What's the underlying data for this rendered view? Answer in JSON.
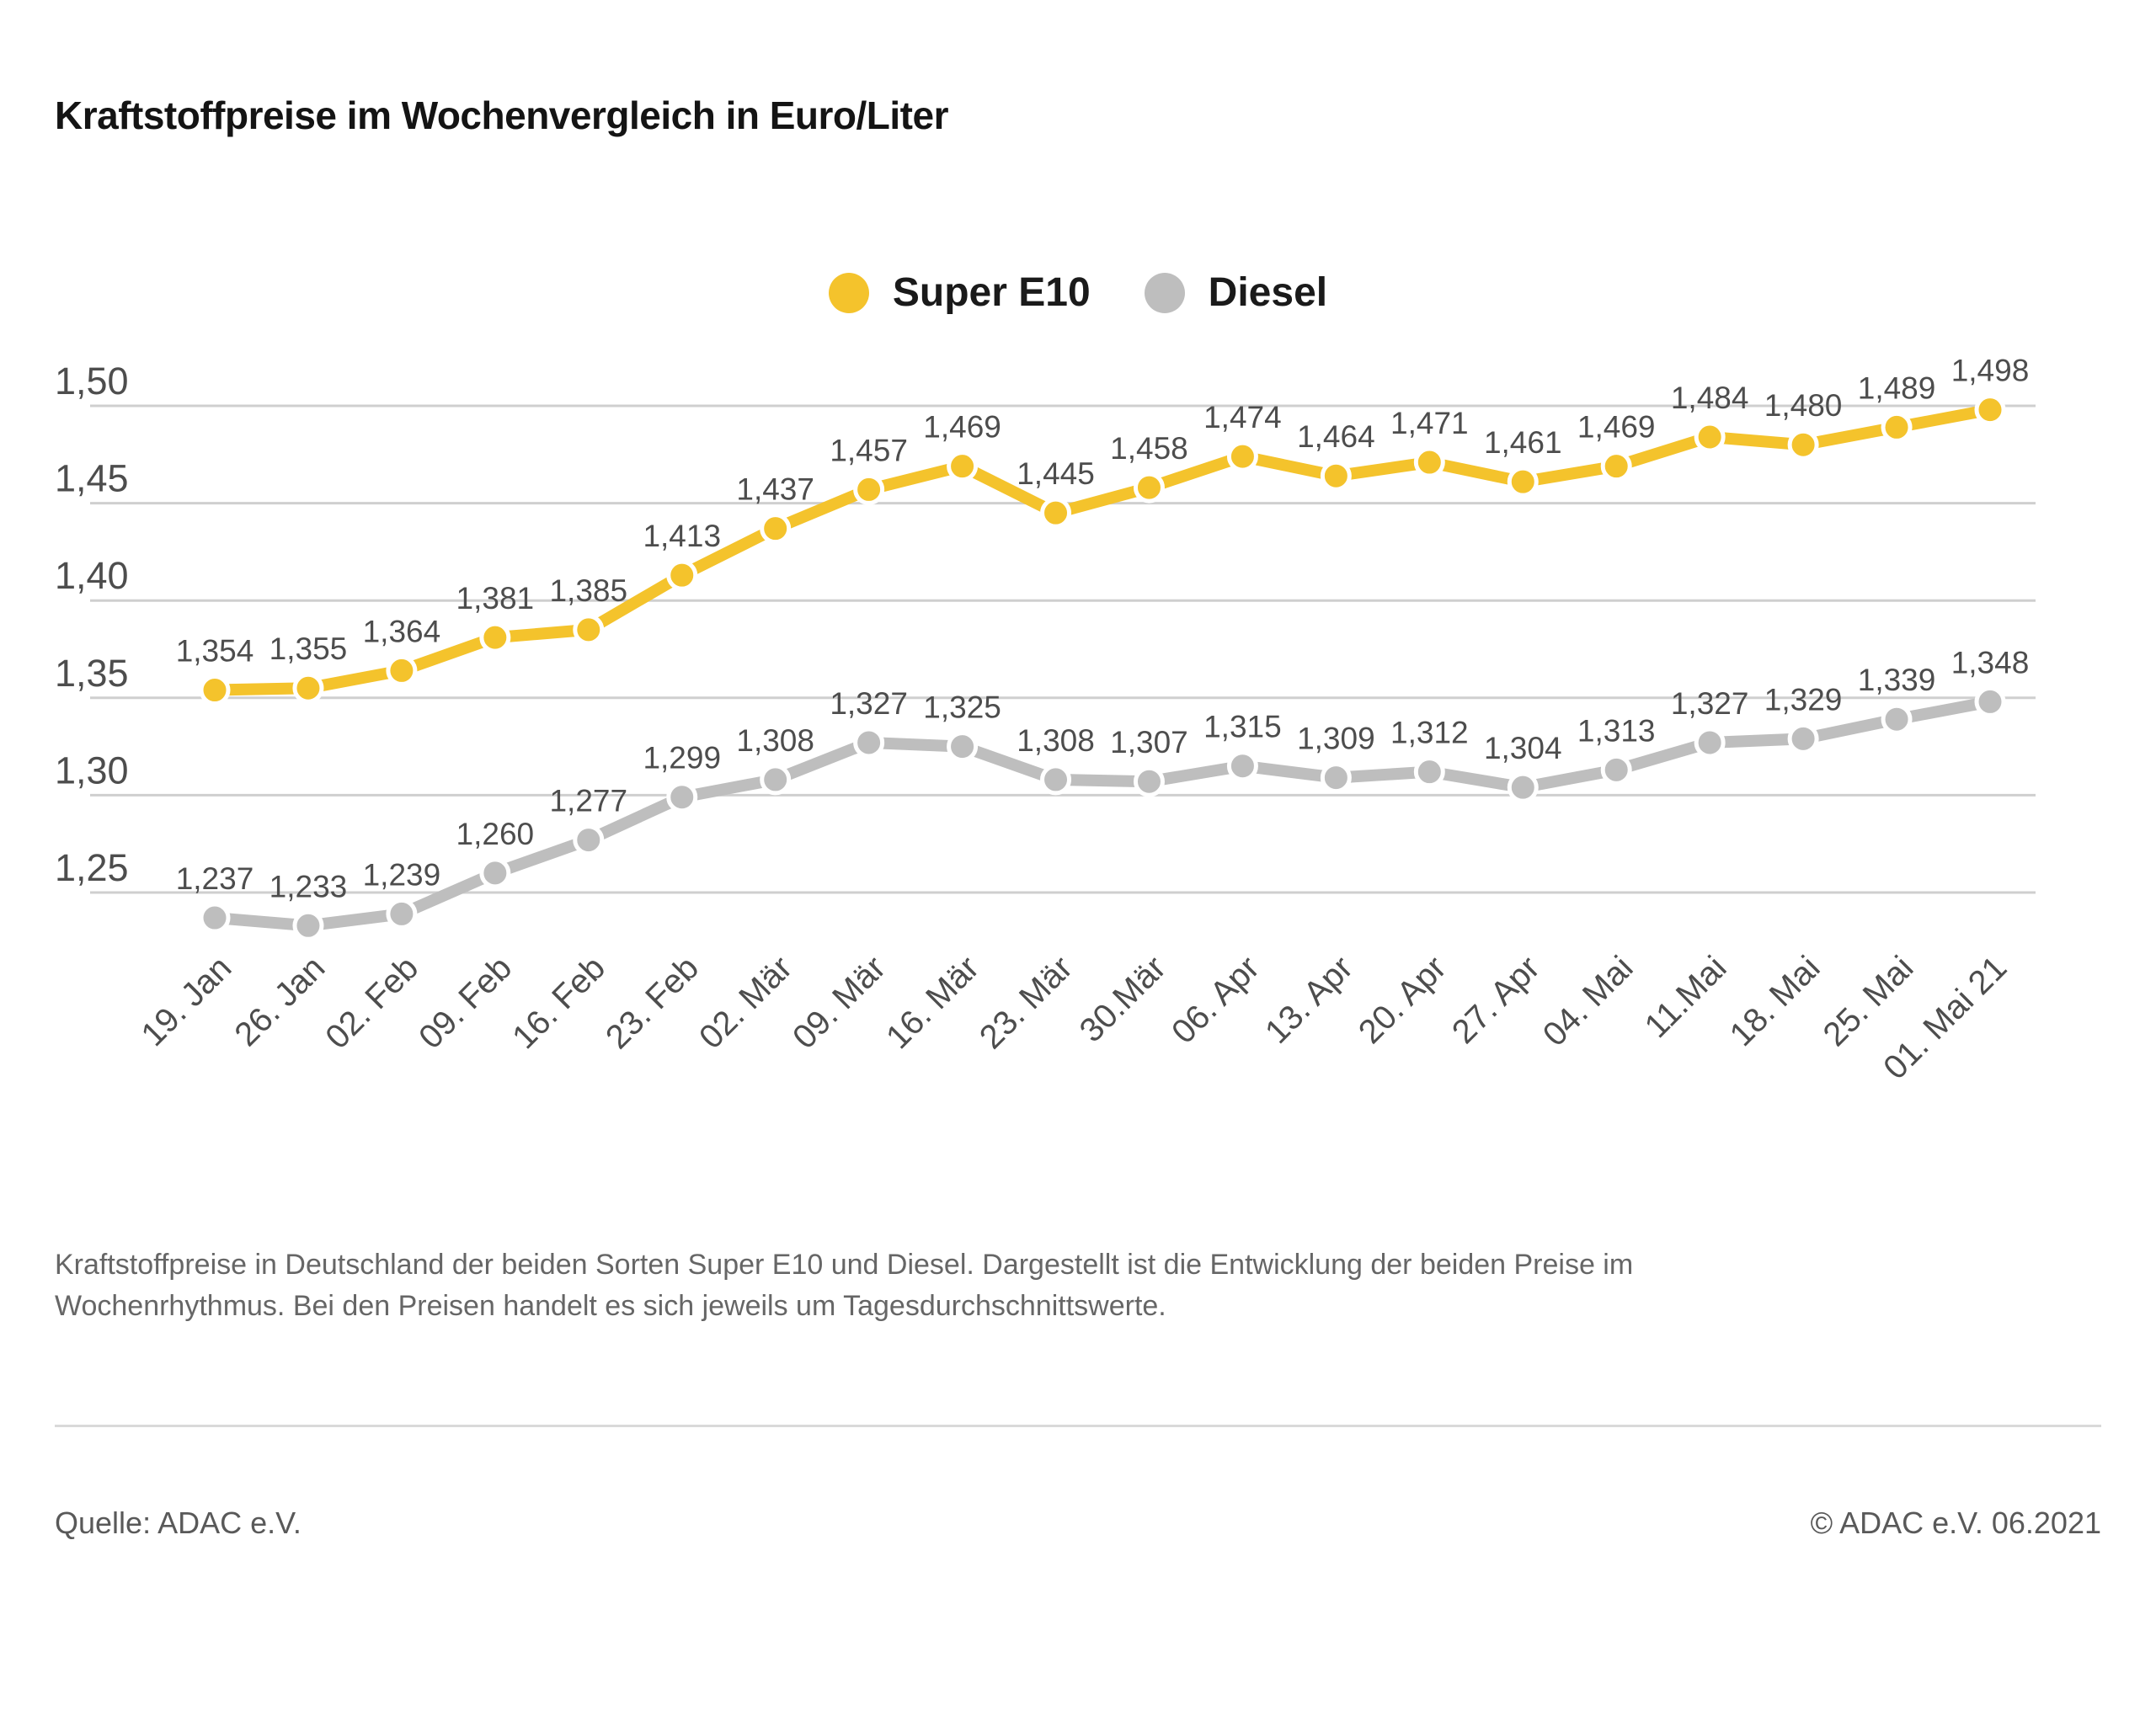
{
  "page": {
    "description_lines": [
      "Kraftstoffpreise in Deutschland der beiden Sorten Super E10 und Diesel. Dargestellt ist die Entwicklung der beiden Preise im",
      "Wochenrhythmus. Bei den Preisen handelt es sich jeweils um Tagesdurchschnittswerte."
    ],
    "source": "Quelle: ADAC e.V.",
    "copyright": "© ADAC e.V. 06.2021"
  },
  "chart_data": {
    "type": "line",
    "title": "Kraftstoffpreise im Wochenvergleich in Euro/Liter",
    "categories": [
      "19. Jan",
      "26. Jan",
      "02. Feb",
      "09. Feb",
      "16. Feb",
      "23. Feb",
      "02. Mär",
      "09. Mär",
      "16. Mär",
      "23. Mär",
      "30.Mär",
      "06. Apr",
      "13. Apr",
      "20. Apr",
      "27. Apr",
      "04. Mai",
      "11.Mai",
      "18. Mai",
      "25. Mai",
      "01. Mai 21"
    ],
    "series": [
      {
        "name": "Super E10",
        "color": "#F4C32C",
        "values": [
          1.354,
          1.355,
          1.364,
          1.381,
          1.385,
          1.413,
          1.437,
          1.457,
          1.469,
          1.445,
          1.458,
          1.474,
          1.464,
          1.471,
          1.461,
          1.469,
          1.484,
          1.48,
          1.489,
          1.498
        ]
      },
      {
        "name": "Diesel",
        "color": "#BEBEBE",
        "values": [
          1.237,
          1.233,
          1.239,
          1.26,
          1.277,
          1.299,
          1.308,
          1.327,
          1.325,
          1.308,
          1.307,
          1.315,
          1.309,
          1.312,
          1.304,
          1.313,
          1.327,
          1.329,
          1.339,
          1.348
        ]
      }
    ],
    "yticks": [
      1.5,
      1.45,
      1.4,
      1.35,
      1.3,
      1.25
    ],
    "ytick_labels": [
      "1,50",
      "1,45",
      "1,40",
      "1,35",
      "1,30",
      "1,25"
    ],
    "ylim": [
      1.22,
      1.52
    ],
    "xlabel": "",
    "ylabel": "",
    "grid": true,
    "legend_position": "top",
    "label_color": "#4D4D4D",
    "grid_color": "#CFCFCF"
  }
}
